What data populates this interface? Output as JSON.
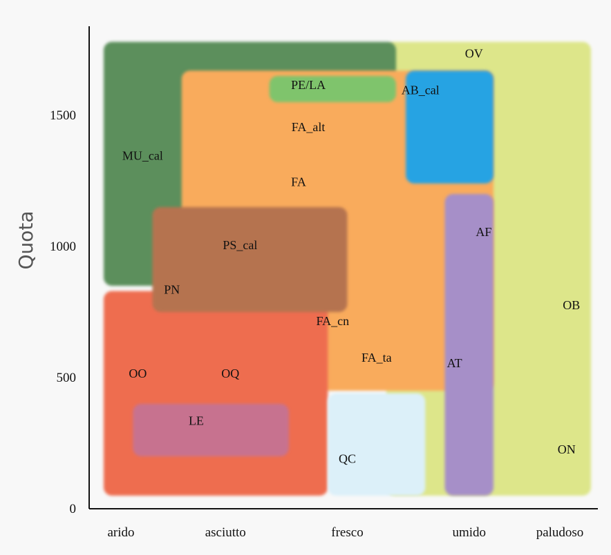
{
  "chart_data": {
    "type": "area",
    "ylabel": "Quota",
    "xlabel": "",
    "x_categories": [
      "arido",
      "asciutto",
      "fresco",
      "umido",
      "paludoso"
    ],
    "yticks": [
      0,
      500,
      1000,
      1500
    ],
    "ylim": [
      0,
      1800
    ],
    "grid": false,
    "legend": "none",
    "zones": [
      {
        "label": "OV",
        "color": "#dde68a",
        "x0": 2.9,
        "x1": 5.0,
        "y0": 50,
        "y1": 1780,
        "label_x": 3.7,
        "label_y": 1720
      },
      {
        "label": "MU_cal",
        "color": "#5c8f5c",
        "x0": 0.0,
        "x1": 3.0,
        "y0": 850,
        "y1": 1780,
        "label_x": 0.4,
        "label_y": 1330
      },
      {
        "label": "FA",
        "color": "#f9ab5c",
        "x0": 0.8,
        "x1": 4.0,
        "y0": 450,
        "y1": 1670,
        "label_x": 2.0,
        "label_y": 1230
      },
      {
        "label": "PE/LA",
        "color": "#7fc46c",
        "x0": 1.7,
        "x1": 3.0,
        "y0": 1550,
        "y1": 1650,
        "label_x": 2.3,
        "label_y": 1605
      },
      {
        "label": "AB_cal",
        "color": "#27a3e3",
        "x0": 3.1,
        "x1": 4.0,
        "y0": 1240,
        "y1": 1670,
        "label_x": 3.3,
        "label_y": 1585
      },
      {
        "label": "OO",
        "color": "#ee6d4f",
        "x0": 0.0,
        "x1": 2.3,
        "y0": 50,
        "y1": 830,
        "label_x": 0.4,
        "label_y": 460
      },
      {
        "label": "QC",
        "color": "#dcf0f9",
        "x0": 2.3,
        "x1": 3.3,
        "y0": 50,
        "y1": 440,
        "label_x": 2.5,
        "label_y": 170
      },
      {
        "label": "LE",
        "color": "#c7728f",
        "x0": 0.3,
        "x1": 1.9,
        "y0": 200,
        "y1": 400,
        "label_x": 0.9,
        "label_y": 300
      },
      {
        "label": "PS_cal",
        "color": "#b57350",
        "x0": 0.5,
        "x1": 2.5,
        "y0": 750,
        "y1": 1150,
        "label_x": 1.3,
        "label_y": 980
      },
      {
        "label": "AF",
        "color": "#a68fc8",
        "x0": 3.5,
        "x1": 4.0,
        "y0": 50,
        "y1": 1200,
        "label_x": 3.9,
        "label_y": 1040
      }
    ],
    "labels": [
      {
        "text": "OV",
        "x": 3.8,
        "y": 1720
      },
      {
        "text": "PE/LA",
        "x": 2.1,
        "y": 1600
      },
      {
        "text": "AB_cal",
        "x": 3.25,
        "y": 1580
      },
      {
        "text": "FA_alt",
        "x": 2.1,
        "y": 1440
      },
      {
        "text": "MU_cal",
        "x": 0.4,
        "y": 1330
      },
      {
        "text": "FA",
        "x": 2.0,
        "y": 1230
      },
      {
        "text": "AF",
        "x": 3.9,
        "y": 1040
      },
      {
        "text": "PS_cal",
        "x": 1.4,
        "y": 990
      },
      {
        "text": "PN",
        "x": 0.7,
        "y": 820
      },
      {
        "text": "OB",
        "x": 4.8,
        "y": 760
      },
      {
        "text": "FA_cn",
        "x": 2.35,
        "y": 700
      },
      {
        "text": "FA_ta",
        "x": 2.8,
        "y": 560
      },
      {
        "text": "AT",
        "x": 3.6,
        "y": 540
      },
      {
        "text": "OO",
        "x": 0.35,
        "y": 500
      },
      {
        "text": "OQ",
        "x": 1.3,
        "y": 500
      },
      {
        "text": "LE",
        "x": 0.95,
        "y": 320
      },
      {
        "text": "QC",
        "x": 2.5,
        "y": 175
      },
      {
        "text": "ON",
        "x": 4.75,
        "y": 210
      }
    ]
  }
}
